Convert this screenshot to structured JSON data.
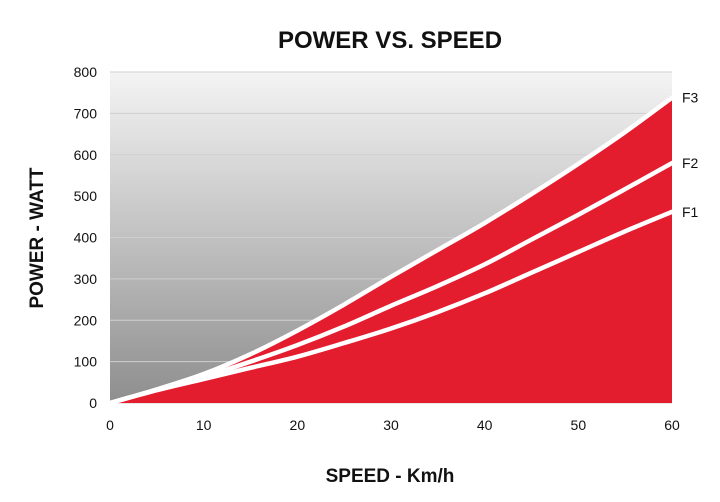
{
  "chart_data": {
    "type": "area",
    "title": "POWER VS. SPEED",
    "xlabel": "SPEED - Km/h",
    "ylabel": "POWER - WATT",
    "xlim": [
      0,
      60
    ],
    "ylim": [
      0,
      800
    ],
    "x_ticks": [
      "0",
      "10",
      "20",
      "30",
      "40",
      "50",
      "60"
    ],
    "y_ticks": [
      "0",
      "100",
      "200",
      "300",
      "400",
      "500",
      "600",
      "700",
      "800"
    ],
    "grid": true,
    "x": [
      0,
      5,
      10,
      15,
      20,
      25,
      30,
      35,
      40,
      45,
      50,
      55,
      60
    ],
    "series": [
      {
        "name": "F3",
        "values": [
          0,
          33,
          70,
          118,
          175,
          238,
          305,
          370,
          435,
          505,
          578,
          655,
          738
        ]
      },
      {
        "name": "F2",
        "values": [
          0,
          32,
          63,
          100,
          140,
          185,
          235,
          283,
          335,
          395,
          455,
          517,
          580
        ]
      },
      {
        "name": "F1",
        "values": [
          0,
          31,
          58,
          85,
          112,
          145,
          180,
          220,
          265,
          315,
          365,
          415,
          462
        ]
      }
    ],
    "colors": {
      "fill": "#e31c2e",
      "curve": "#ffffff",
      "gradient_top": "#f4f4f4",
      "gradient_bottom": "#8e8e8e",
      "grid": "#cfcfcf"
    }
  }
}
